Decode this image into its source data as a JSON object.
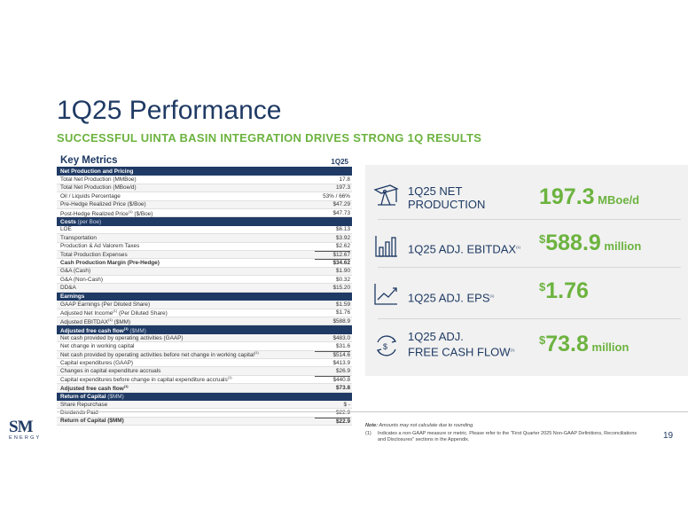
{
  "slide": {
    "title": "1Q25 Performance",
    "subtitle": "SUCCESSFUL UINTA BASIN INTEGRATION DRIVES STRONG 1Q RESULTS",
    "page_number": "19"
  },
  "table": {
    "heading": "Key Metrics",
    "column": "1Q25",
    "rows": [
      {
        "type": "sec",
        "label": "Net Production and Pricing",
        "unit": "",
        "value": ""
      },
      {
        "type": "row",
        "label": "Total Net Production (MMBoe)",
        "value": "17.8"
      },
      {
        "type": "row",
        "label": "Total Net Production (MBoe/d)",
        "value": "197.3"
      },
      {
        "type": "row",
        "label": "Oil / Liquids Percentage",
        "value": "53% / 66%"
      },
      {
        "type": "row",
        "label": "Pre-Hedge Realized Price ($/Boe)",
        "value": "$47.29"
      },
      {
        "type": "row",
        "label": "Post-Hedge Realized Price",
        "sup": "(1)",
        "label2": " ($/Boe)",
        "value": "$47.73"
      },
      {
        "type": "sec",
        "label": "Costs",
        "unit": " (per Boe)",
        "value": ""
      },
      {
        "type": "row",
        "label": "LOE",
        "value": "$6.13"
      },
      {
        "type": "row",
        "label": "Transportation",
        "value": "$3.92"
      },
      {
        "type": "row",
        "label": "Production & Ad Valorem Taxes",
        "value": "$2.62"
      },
      {
        "type": "row total",
        "label": "Total Production Expenses",
        "value": "$12.67"
      },
      {
        "type": "row bold total",
        "label": "Cash Production Margin (Pre-Hedge)",
        "value": "$34.62"
      },
      {
        "type": "row",
        "label": "G&A (Cash)",
        "value": "$1.90"
      },
      {
        "type": "row",
        "label": "G&A (Non-Cash)",
        "value": "$0.32"
      },
      {
        "type": "row",
        "label": "DD&A",
        "value": "$15.20"
      },
      {
        "type": "sec",
        "label": "Earnings",
        "unit": "",
        "value": ""
      },
      {
        "type": "row",
        "label": "GAAP Earnings (Per Diluted Share)",
        "value": "$1.59"
      },
      {
        "type": "row",
        "label": "Adjusted Net Income",
        "sup": "(1)",
        "label2": " (Per Diluted Share)",
        "value": "$1.76"
      },
      {
        "type": "row",
        "label": "Adjusted EBITDAX",
        "sup": "(1)",
        "label2": " ($MM)",
        "value": "$588.9"
      },
      {
        "type": "sec",
        "label": "Adjusted free cash flow",
        "sup": "(1)",
        "unit": " ($MM)",
        "value": ""
      },
      {
        "type": "row",
        "label": "Net cash provided by operating activities (GAAP)",
        "value": "$483.0"
      },
      {
        "type": "row",
        "label": "Net change in working capital",
        "value": "$31.6"
      },
      {
        "type": "row total",
        "label": "Net cash provided by operating activities before net change in working capital",
        "sup": "(1)",
        "value": "$514.6"
      },
      {
        "type": "row",
        "label": "Capital expenditures (GAAP)",
        "value": "$413.9"
      },
      {
        "type": "row",
        "label": "Changes in capital expenditure accruals",
        "value": "$26.9"
      },
      {
        "type": "row total",
        "label": "Capital expenditures before change in capital expenditure accruals",
        "sup": "(1)",
        "value": "$440.8"
      },
      {
        "type": "row bold",
        "label": "Adjusted free cash flow",
        "sup": "(1)",
        "value": "$73.8"
      },
      {
        "type": "sec",
        "label": "Return of Capital",
        "unit": " ($MM)",
        "value": ""
      },
      {
        "type": "row",
        "label": "Share Repurchase",
        "value": "$ -"
      },
      {
        "type": "row",
        "label": "Dividends Paid",
        "value": "$22.9"
      },
      {
        "type": "row bold total",
        "label": "Return of Capital ($MM)",
        "value": "$22.9"
      }
    ]
  },
  "kpis": [
    {
      "label_lines": [
        "1Q25 NET",
        "PRODUCTION"
      ],
      "dollar": "",
      "value": "197.3",
      "unit": " MBoe/d",
      "icon": "oil-pump-icon"
    },
    {
      "label_lines": [
        "1Q25 ADJ. EBITDAX"
      ],
      "sup": "(1)",
      "dollar": "$",
      "value": "588.9",
      "unit": " million",
      "icon": "bar-chart-icon"
    },
    {
      "label_lines": [
        "1Q25 ADJ. EPS"
      ],
      "sup": "(1)",
      "dollar": "$",
      "value": "1.76",
      "unit": "",
      "icon": "trend-line-icon"
    },
    {
      "label_lines": [
        "1Q25 ADJ.",
        "FREE CASH FLOW"
      ],
      "sup": "(1)",
      "dollar": "$",
      "value": "73.8",
      "unit": " million",
      "icon": "cash-cycle-icon"
    }
  ],
  "notes": {
    "note_label": "Note:",
    "note_text": " Amounts may not calculate due to rounding.",
    "footnote_num": "(1)",
    "footnote_text": "Indicates a non-GAAP measure or metric. Please refer to the \"First Quarter 2025 Non-GAAP Definitions, Reconciliations and Disclosures\" sections in the Appendix."
  },
  "logo": {
    "mark": "SM",
    "word": "ENERGY"
  },
  "colors": {
    "navy": "#1f3a64",
    "green": "#6cb33f"
  }
}
